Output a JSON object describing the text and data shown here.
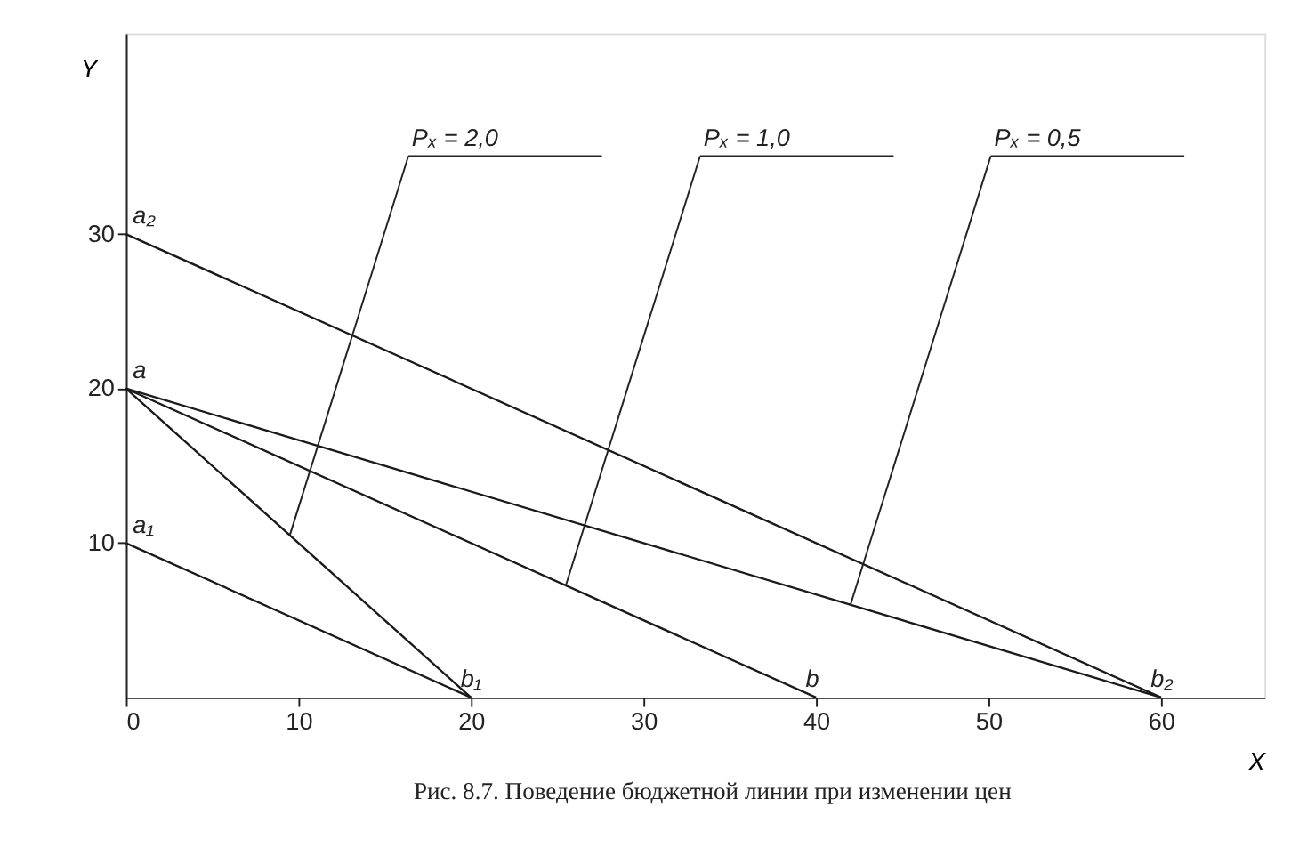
{
  "chart_data": {
    "type": "line",
    "xlabel": "X",
    "ylabel": "Y",
    "xlim": [
      0,
      66
    ],
    "ylim": [
      0,
      43
    ],
    "xticks": [
      0,
      10,
      20,
      30,
      40,
      50,
      60
    ],
    "yticks": [
      10,
      20,
      30
    ],
    "grid": false,
    "marker": "none",
    "line_style": "solid",
    "series": [
      {
        "color": "#1a1a1a",
        "x": [
          0,
          20
        ],
        "values": [
          10,
          0
        ]
      },
      {
        "color": "#1a1a1a",
        "x": [
          0,
          20
        ],
        "values": [
          20,
          0
        ]
      },
      {
        "color": "#1a1a1a",
        "x": [
          0,
          40
        ],
        "values": [
          20,
          0
        ]
      },
      {
        "color": "#1a1a1a",
        "x": [
          0,
          60
        ],
        "values": [
          20,
          0
        ]
      },
      {
        "color": "#1a1a1a",
        "x": [
          0,
          60
        ],
        "values": [
          30,
          0
        ]
      }
    ],
    "annotations": [
      {
        "text": "a₂",
        "x": 0,
        "y": 30
      },
      {
        "text": "a",
        "x": 0,
        "y": 20
      },
      {
        "text": "a₁",
        "x": 0,
        "y": 10
      },
      {
        "text": "b₁",
        "x": 20,
        "y": 0
      },
      {
        "text": "b",
        "x": 40,
        "y": 0
      },
      {
        "text": "b₂",
        "x": 60,
        "y": 0
      },
      {
        "text": "Pₓ = 2,0",
        "x": 9.5,
        "y": 10.5
      },
      {
        "text": "Pₓ = 1,0",
        "x": 25.5,
        "y": 7.25
      },
      {
        "text": "Pₓ = 0,5",
        "x": 42,
        "y": 6
      },
      "Рис. 8.7. Поведение бюджетной линии при изменении цен"
    ]
  }
}
